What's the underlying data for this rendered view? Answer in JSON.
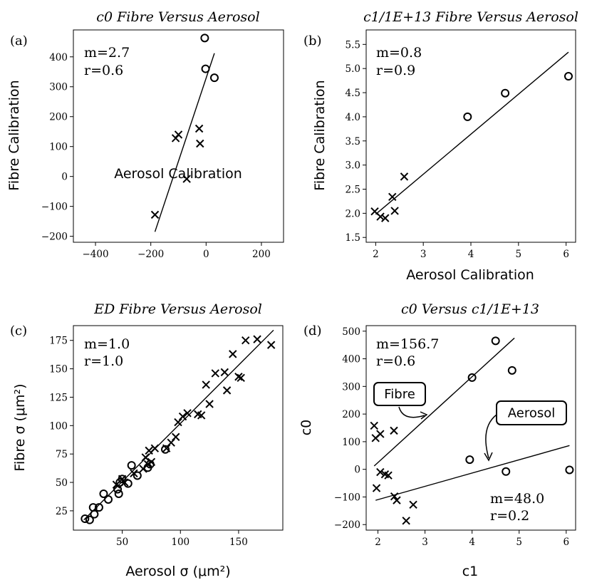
{
  "chart_data": [
    {
      "type": "scatter",
      "panel_label": "(a)",
      "title": "c0 Fibre Versus Aerosol",
      "xlabel": "Aerosol Calibration",
      "ylabel": "Fibre Calibration",
      "xlim": [
        -480,
        280
      ],
      "ylim": [
        -220,
        490
      ],
      "xticks": [
        -400,
        -200,
        0,
        200
      ],
      "xtick_labels": [
        "−400",
        "−200",
        "0",
        "200"
      ],
      "yticks": [
        -200,
        -100,
        0,
        100,
        200,
        300,
        400
      ],
      "ytick_labels": [
        "−200",
        "−100",
        "0",
        "100",
        "200",
        "300",
        "400"
      ],
      "annotations": [
        "m=2.7",
        "r=0.6"
      ],
      "series": [
        {
          "marker": "x",
          "points": [
            [
              -185,
              -128
            ],
            [
              -110,
              128
            ],
            [
              -100,
              140
            ],
            [
              -70,
              -8
            ],
            [
              -25,
              160
            ],
            [
              -22,
              110
            ]
          ]
        },
        {
          "marker": "o",
          "points": [
            [
              -5,
              463
            ],
            [
              -2,
              360
            ],
            [
              30,
              330
            ]
          ]
        }
      ],
      "fit_line": [
        [
          -185,
          -185
        ],
        [
          30,
          412
        ]
      ]
    },
    {
      "type": "scatter",
      "panel_label": "(b)",
      "title": "c1/1E+13 Fibre Versus Aerosol",
      "xlabel": "Aerosol Calibration",
      "ylabel": "Fibre Calibration",
      "xlim": [
        1.8,
        6.2
      ],
      "ylim": [
        1.4,
        5.8
      ],
      "xticks": [
        2,
        3,
        4,
        5,
        6
      ],
      "xtick_labels": [
        "2",
        "3",
        "4",
        "5",
        "6"
      ],
      "yticks": [
        1.5,
        2.0,
        2.5,
        3.0,
        3.5,
        4.0,
        4.5,
        5.0,
        5.5
      ],
      "ytick_labels": [
        "1.5",
        "2.0",
        "2.5",
        "3.0",
        "3.5",
        "4.0",
        "4.5",
        "5.0",
        "5.5"
      ],
      "annotations": [
        "m=0.8",
        "r=0.9"
      ],
      "series": [
        {
          "marker": "x",
          "points": [
            [
              1.98,
              2.04
            ],
            [
              2.1,
              1.93
            ],
            [
              2.2,
              1.9
            ],
            [
              2.35,
              2.34
            ],
            [
              2.4,
              2.05
            ],
            [
              2.6,
              2.76
            ]
          ]
        },
        {
          "marker": "o",
          "points": [
            [
              3.93,
              4.0
            ],
            [
              4.72,
              4.49
            ],
            [
              6.05,
              4.84
            ]
          ]
        }
      ],
      "fit_line": [
        [
          2.0,
          1.98
        ],
        [
          6.05,
          5.34
        ]
      ]
    },
    {
      "type": "scatter",
      "panel_label": "(c)",
      "title": "ED Fibre Versus Aerosol",
      "xlabel": "Aerosol σ (μm²)",
      "ylabel": "Fibre σ (μm²)",
      "xlim": [
        8,
        188
      ],
      "ylim": [
        8,
        188
      ],
      "xticks": [
        50,
        100,
        150
      ],
      "xtick_labels": [
        "50",
        "100",
        "150"
      ],
      "yticks": [
        25,
        50,
        75,
        100,
        125,
        150,
        175
      ],
      "ytick_labels": [
        "25",
        "50",
        "75",
        "100",
        "125",
        "150",
        "175"
      ],
      "annotations": [
        "m=1.0",
        "r=1.0"
      ],
      "series": [
        {
          "marker": "x",
          "points": [
            [
              45,
              48
            ],
            [
              50,
              53
            ],
            [
              52,
              50
            ],
            [
              60,
              58
            ],
            [
              68,
              62
            ],
            [
              70,
              72
            ],
            [
              72,
              66
            ],
            [
              73,
              78
            ],
            [
              75,
              68
            ],
            [
              78,
              80
            ],
            [
              88,
              80
            ],
            [
              92,
              85
            ],
            [
              96,
              90
            ],
            [
              98,
              103
            ],
            [
              102,
              108
            ],
            [
              106,
              111
            ],
            [
              115,
              110
            ],
            [
              118,
              109
            ],
            [
              122,
              136
            ],
            [
              125,
              119
            ],
            [
              130,
              146
            ],
            [
              138,
              147
            ],
            [
              140,
              131
            ],
            [
              145,
              163
            ],
            [
              150,
              143
            ],
            [
              152,
              142
            ],
            [
              156,
              175
            ],
            [
              166,
              176
            ],
            [
              178,
              171
            ]
          ]
        },
        {
          "marker": "o",
          "points": [
            [
              18,
              18
            ],
            [
              22,
              17
            ],
            [
              25,
              28
            ],
            [
              26,
              22
            ],
            [
              30,
              28
            ],
            [
              34,
              40
            ],
            [
              38,
              35
            ],
            [
              46,
              44
            ],
            [
              47,
              40
            ],
            [
              48,
              50
            ],
            [
              50,
              53
            ],
            [
              55,
              49
            ],
            [
              58,
              65
            ],
            [
              63,
              56
            ],
            [
              72,
              63
            ],
            [
              74,
              66
            ],
            [
              87,
              79
            ]
          ]
        }
      ],
      "fit_line": [
        [
          17,
          17
        ],
        [
          180,
          184
        ]
      ]
    },
    {
      "type": "scatter",
      "panel_label": "(d)",
      "title": "c0 Versus c1/1E+13",
      "xlabel": "c1",
      "ylabel": "c0",
      "xlim": [
        1.75,
        6.2
      ],
      "ylim": [
        -220,
        520
      ],
      "xticks": [
        2,
        3,
        4,
        5,
        6
      ],
      "xtick_labels": [
        "2",
        "3",
        "4",
        "5",
        "6"
      ],
      "yticks": [
        -200,
        -100,
        0,
        100,
        200,
        300,
        400,
        500
      ],
      "ytick_labels": [
        "−200",
        "−100",
        "0",
        "100",
        "200",
        "300",
        "400",
        "500"
      ],
      "annotations": [
        "m=156.7",
        "r=0.6",
        "m=48.0",
        "r=0.2"
      ],
      "labels": [
        "Fibre",
        "Aerosol"
      ],
      "series": [
        {
          "marker": "x",
          "points": [
            [
              1.92,
              158
            ],
            [
              1.95,
              113
            ],
            [
              2.05,
              128
            ],
            [
              2.34,
              140
            ],
            [
              1.97,
              -68
            ],
            [
              2.05,
              -10
            ],
            [
              2.15,
              -18
            ],
            [
              2.22,
              -22
            ],
            [
              2.35,
              -98
            ],
            [
              2.4,
              -112
            ],
            [
              2.6,
              -186
            ],
            [
              2.75,
              -128
            ]
          ]
        },
        {
          "marker": "o",
          "points": [
            [
              4.5,
              465
            ],
            [
              4.0,
              332
            ],
            [
              4.85,
              358
            ],
            [
              3.95,
              35
            ],
            [
              4.72,
              -8
            ],
            [
              6.07,
              -2
            ]
          ]
        }
      ],
      "fit_lines": [
        [
          [
            1.92,
            12
          ],
          [
            4.9,
            475
          ]
        ],
        [
          [
            1.95,
            -112
          ],
          [
            6.07,
            86
          ]
        ]
      ]
    }
  ]
}
